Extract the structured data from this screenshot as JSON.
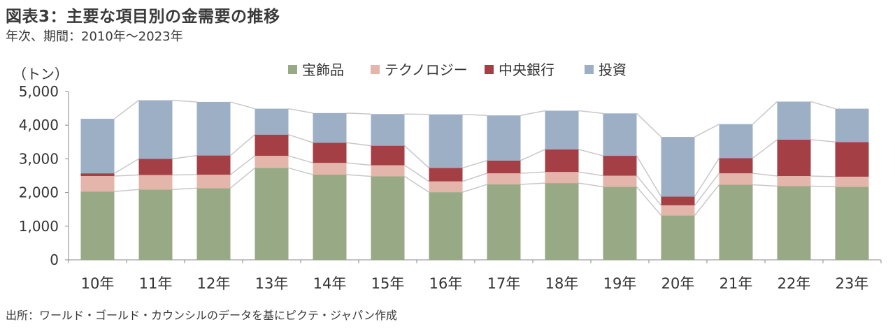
{
  "title": "図表3：主要な項目別の金需要の推移",
  "subtitle": "年次、期間：2010年～2023年",
  "source": "出所：ワールド・ゴールド・カウンシルのデータを基にピクテ・ジャパン作成",
  "chart_data": {
    "type": "bar",
    "stacked": true,
    "unit_label": "（トン）",
    "categories": [
      "10年",
      "11年",
      "12年",
      "13年",
      "14年",
      "15年",
      "16年",
      "17年",
      "18年",
      "19年",
      "20年",
      "21年",
      "22年",
      "23年"
    ],
    "series": [
      {
        "name": "宝飾品",
        "color": "#98a985",
        "values": [
          2030,
          2090,
          2130,
          2730,
          2530,
          2480,
          2010,
          2240,
          2280,
          2170,
          1320,
          2230,
          2190,
          2170
        ]
      },
      {
        "name": "テクノロジー",
        "color": "#e4b5ab",
        "values": [
          460,
          430,
          400,
          360,
          350,
          330,
          320,
          330,
          330,
          330,
          300,
          340,
          300,
          300
        ]
      },
      {
        "name": "中央銀行",
        "color": "#a33f45",
        "values": [
          80,
          480,
          570,
          630,
          600,
          580,
          400,
          380,
          670,
          590,
          260,
          450,
          1080,
          1030
        ]
      },
      {
        "name": "投資",
        "color": "#9dafc4",
        "values": [
          1620,
          1740,
          1590,
          770,
          880,
          940,
          1590,
          1340,
          1150,
          1260,
          1770,
          1010,
          1130,
          990
        ]
      }
    ],
    "ylim": [
      0,
      5000
    ],
    "yticks": [
      0,
      1000,
      2000,
      3000,
      4000,
      5000
    ],
    "ytick_labels": [
      "0",
      "1,000",
      "2,000",
      "3,000",
      "4,000",
      "5,000"
    ],
    "grid": false,
    "connector_lines": true,
    "legend_position": "top-center"
  }
}
